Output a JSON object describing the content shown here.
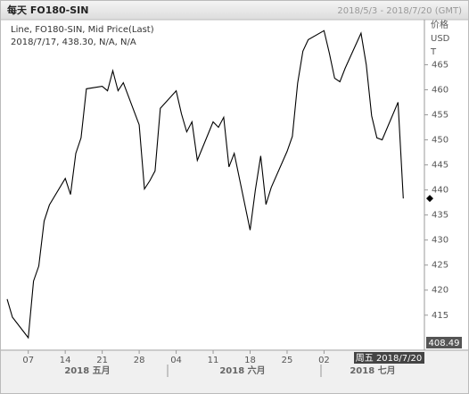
{
  "chart_data": {
    "type": "line",
    "title": "每天 FO180-SIN",
    "subtitle": "2018/5/3 - 2018/7/20 (GMT)",
    "legend_text": "Line, FO180-SIN, Mid Price(Last)",
    "readout": "2018/7/17, 438.30, N/A, N/A",
    "y_axis_label_lines": [
      "价格",
      "USD",
      "T"
    ],
    "bottom_value_label": "408.49",
    "cursor_label": "周五 2018/7/20",
    "months": [
      "2018 五月",
      "2018 六月",
      "2018 七月"
    ],
    "color": "#000000",
    "x": [
      "2018-05-03",
      "2018-05-04",
      "2018-05-07",
      "2018-05-08",
      "2018-05-09",
      "2018-05-10",
      "2018-05-11",
      "2018-05-14",
      "2018-05-15",
      "2018-05-16",
      "2018-05-17",
      "2018-05-18",
      "2018-05-21",
      "2018-05-22",
      "2018-05-23",
      "2018-05-24",
      "2018-05-25",
      "2018-05-28",
      "2018-05-29",
      "2018-05-30",
      "2018-05-31",
      "2018-06-01",
      "2018-06-04",
      "2018-06-05",
      "2018-06-06",
      "2018-06-07",
      "2018-06-08",
      "2018-06-11",
      "2018-06-12",
      "2018-06-13",
      "2018-06-14",
      "2018-06-15",
      "2018-06-18",
      "2018-06-19",
      "2018-06-20",
      "2018-06-21",
      "2018-06-22",
      "2018-06-25",
      "2018-06-26",
      "2018-06-27",
      "2018-06-28",
      "2018-06-29",
      "2018-07-02",
      "2018-07-03",
      "2018-07-04",
      "2018-07-05",
      "2018-07-06",
      "2018-07-09",
      "2018-07-10",
      "2018-07-11",
      "2018-07-12",
      "2018-07-13",
      "2018-07-16",
      "2018-07-17"
    ],
    "values": [
      418.2,
      414.6,
      410.5,
      421.8,
      424.8,
      433.8,
      437.0,
      442.3,
      439.1,
      447.3,
      450.4,
      460.2,
      460.7,
      459.8,
      463.8,
      459.8,
      461.4,
      453.0,
      440.2,
      441.8,
      443.8,
      456.3,
      459.8,
      455.2,
      451.6,
      453.6,
      445.9,
      453.6,
      452.5,
      454.5,
      444.6,
      447.3,
      432.0,
      440.0,
      446.8,
      437.1,
      440.5,
      447.7,
      450.7,
      461.3,
      467.7,
      470.0,
      471.8,
      467.3,
      462.3,
      461.6,
      464.3,
      471.3,
      465.0,
      454.8,
      450.4,
      450.0,
      457.5,
      438.3
    ],
    "xlim": [
      "2018-05-03",
      "2018-07-21"
    ],
    "xticks": [
      {
        "value": "2018-05-07",
        "label": "07"
      },
      {
        "value": "2018-05-14",
        "label": "14"
      },
      {
        "value": "2018-05-21",
        "label": "21"
      },
      {
        "value": "2018-05-28",
        "label": "28"
      },
      {
        "value": "2018-06-04",
        "label": "04"
      },
      {
        "value": "2018-06-11",
        "label": "11"
      },
      {
        "value": "2018-06-18",
        "label": "18"
      },
      {
        "value": "2018-06-25",
        "label": "25"
      },
      {
        "value": "2018-07-02",
        "label": "02"
      }
    ],
    "ylim": [
      408,
      474
    ],
    "yticks": [
      415,
      420,
      425,
      430,
      435,
      440,
      445,
      450,
      455,
      460,
      465
    ]
  }
}
